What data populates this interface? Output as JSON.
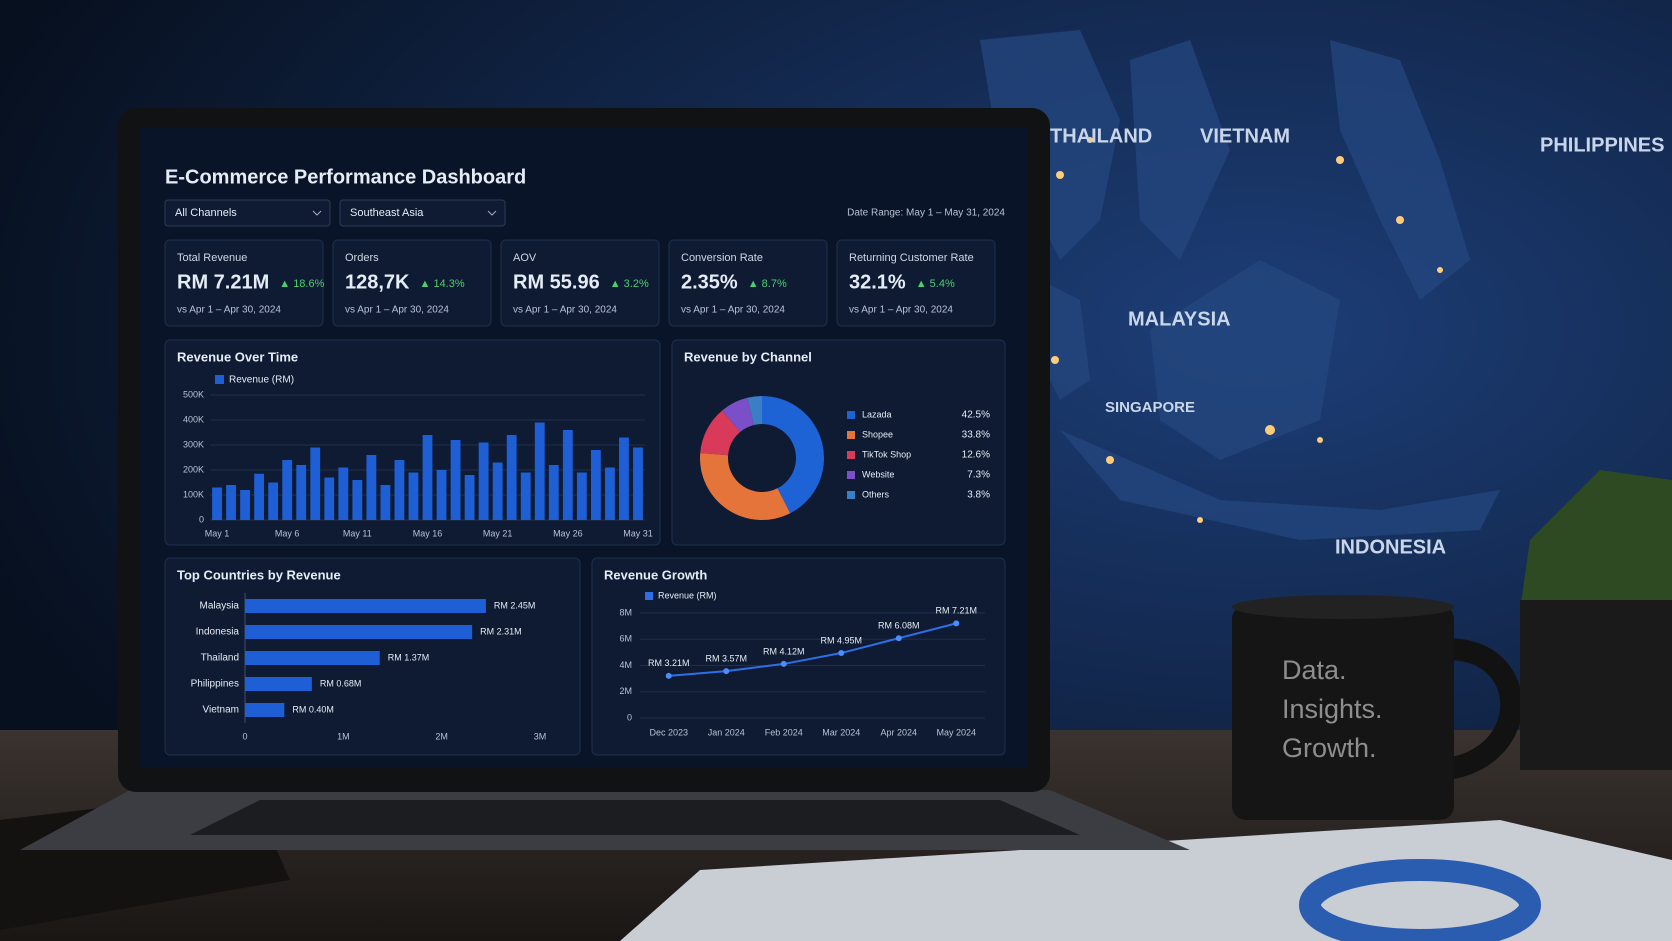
{
  "dashboard": {
    "title": "E-Commerce Performance Dashboard",
    "filters": [
      "All Channels",
      "Southeast Asia"
    ],
    "date_range": "Date Range: May 1 – May 31, 2024",
    "kpis": [
      {
        "label": "Total Revenue",
        "value": "RM 7.21M",
        "change": "▲ 18.6%",
        "compare": "vs Apr 1 – Apr 30, 2024"
      },
      {
        "label": "Orders",
        "value": "128,7K",
        "change": "▲ 14.3%",
        "compare": "vs Apr 1 – Apr 30, 2024"
      },
      {
        "label": "AOV",
        "value": "RM 55.96",
        "change": "▲ 3.2%",
        "compare": "vs Apr 1 – Apr 30, 2024"
      },
      {
        "label": "Conversion Rate",
        "value": "2.35%",
        "change": "▲ 8.7%",
        "compare": "vs Apr 1 – Apr 30, 2024"
      },
      {
        "label": "Returning Customer Rate",
        "value": "32.1%",
        "change": "▲ 5.4%",
        "compare": "vs Apr 1 – Apr 30, 2024"
      }
    ]
  },
  "chart_data": [
    {
      "type": "bar",
      "title": "Revenue Over Time",
      "categories": [
        "May 1",
        null,
        null,
        null,
        null,
        "May 6",
        null,
        null,
        null,
        null,
        "May 11",
        null,
        null,
        null,
        null,
        "May 16",
        null,
        null,
        null,
        null,
        "May 21",
        null,
        null,
        null,
        null,
        "May 26",
        null,
        null,
        null,
        null,
        "May 31"
      ],
      "series": [
        {
          "name": "Revenue (RM)",
          "color": "#1f5fd6",
          "values": [
            130000,
            140000,
            120000,
            185000,
            150000,
            240000,
            220000,
            290000,
            170000,
            210000,
            160000,
            260000,
            140000,
            240000,
            190000,
            340000,
            200000,
            320000,
            180000,
            310000,
            230000,
            340000,
            190000,
            390000,
            220000,
            360000,
            190000,
            280000,
            210000,
            330000,
            290000
          ]
        }
      ],
      "ylim": [
        0,
        500000
      ],
      "yticks": [
        0,
        {
          "value": 100000,
          "label": "100K"
        },
        {
          "value": 200000,
          "label": "200K"
        },
        {
          "value": 300000,
          "label": "300K"
        },
        {
          "value": 400000,
          "label": "400K"
        },
        {
          "value": 500000,
          "label": "500K"
        }
      ],
      "grid": true
    },
    {
      "type": "pie",
      "title": "Revenue by Channel",
      "categories": [
        "Lazada",
        "Shopee",
        "TikTok Shop",
        "Website",
        "Others"
      ],
      "values": [
        42.5,
        33.8,
        12.6,
        7.3,
        3.8
      ],
      "value_labels": [
        "42.5%",
        "33.8%",
        "12.6%",
        "7.3%",
        "3.8%"
      ],
      "colors": [
        "#1e63d6",
        "#e5743a",
        "#d93a5a",
        "#7b4fc7",
        "#3a7fc4"
      ]
    },
    {
      "type": "barh",
      "title": "Top Countries by Revenue",
      "categories": [
        "Malaysia",
        "Indonesia",
        "Thailand",
        "Philippines",
        "Vietnam"
      ],
      "values": [
        2450000,
        2310000,
        1370000,
        680000,
        400000
      ],
      "value_labels": [
        "RM 2.45M",
        "RM 2.31M",
        "RM 1.37M",
        "RM 0.68M",
        "RM 0.40M"
      ],
      "color": "#1f5fd6",
      "xlim": [
        0,
        3000000
      ],
      "xticks": [
        0,
        {
          "value": 1000000,
          "label": "1M"
        },
        {
          "value": 2000000,
          "label": "2M"
        },
        {
          "value": 3000000,
          "label": "3M"
        }
      ]
    },
    {
      "type": "line",
      "title": "Revenue Growth",
      "categories": [
        "Dec 2023",
        "Jan 2024",
        "Feb 2024",
        "Mar 2024",
        "Apr 2024",
        "May 2024"
      ],
      "series": [
        {
          "name": "Revenue (RM)",
          "color": "#2e6fe6",
          "values": [
            3210000,
            3570000,
            4120000,
            4950000,
            6080000,
            7210000
          ],
          "value_labels": [
            "RM 3.21M",
            "RM 3.57M",
            "RM 4.12M",
            "RM 4.95M",
            "RM 6.08M",
            "RM 7.21M"
          ]
        }
      ],
      "ylim": [
        0,
        8000000
      ],
      "yticks": [
        0,
        {
          "value": 2000000,
          "label": "2M"
        },
        {
          "value": 4000000,
          "label": "4M"
        },
        {
          "value": 6000000,
          "label": "6M"
        },
        {
          "value": 8000000,
          "label": "8M"
        }
      ],
      "grid": true
    }
  ],
  "scene": {
    "map_labels": [
      "THAILAND",
      "VIETNAM",
      "PHILIPPINES",
      "MALAYSIA",
      "SINGAPORE",
      "INDONESIA"
    ],
    "mug_text": [
      "Data.",
      "Insights.",
      "Growth."
    ]
  }
}
